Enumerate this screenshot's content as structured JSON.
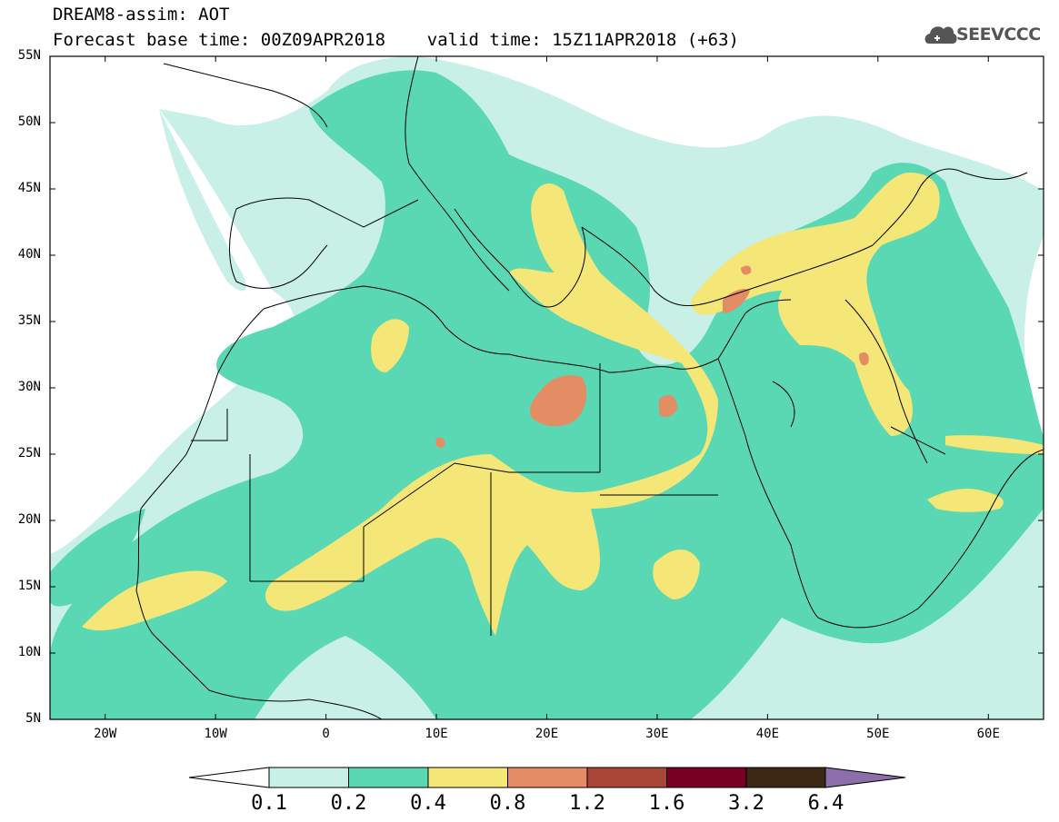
{
  "header": {
    "model_title": "DREAM8-assim: AOT",
    "forecast_line": "Forecast base time: 00Z09APR2018    valid time: 15Z11APR2018 (+63)",
    "logo_text": "SEEVCCC"
  },
  "map": {
    "lat_labels": [
      "55N",
      "50N",
      "45N",
      "40N",
      "35N",
      "30N",
      "25N",
      "20N",
      "15N",
      "10N",
      "5N"
    ],
    "lon_labels": [
      "20W",
      "10W",
      "0",
      "10E",
      "20E",
      "30E",
      "40E",
      "50E",
      "60E"
    ],
    "extent": {
      "lon_min": -25,
      "lon_max": 65,
      "lat_min": 5,
      "lat_max": 55
    }
  },
  "colorbar": {
    "levels": [
      "0.1",
      "0.2",
      "0.4",
      "0.8",
      "1.2",
      "1.6",
      "3.2",
      "6.4"
    ],
    "colors": [
      "#c8f0e6",
      "#5ad8b4",
      "#f5e678",
      "#e48c64",
      "#aa4637",
      "#780023",
      "#3c2814",
      "#8c6eaa"
    ],
    "under_color": "#ffffff"
  }
}
